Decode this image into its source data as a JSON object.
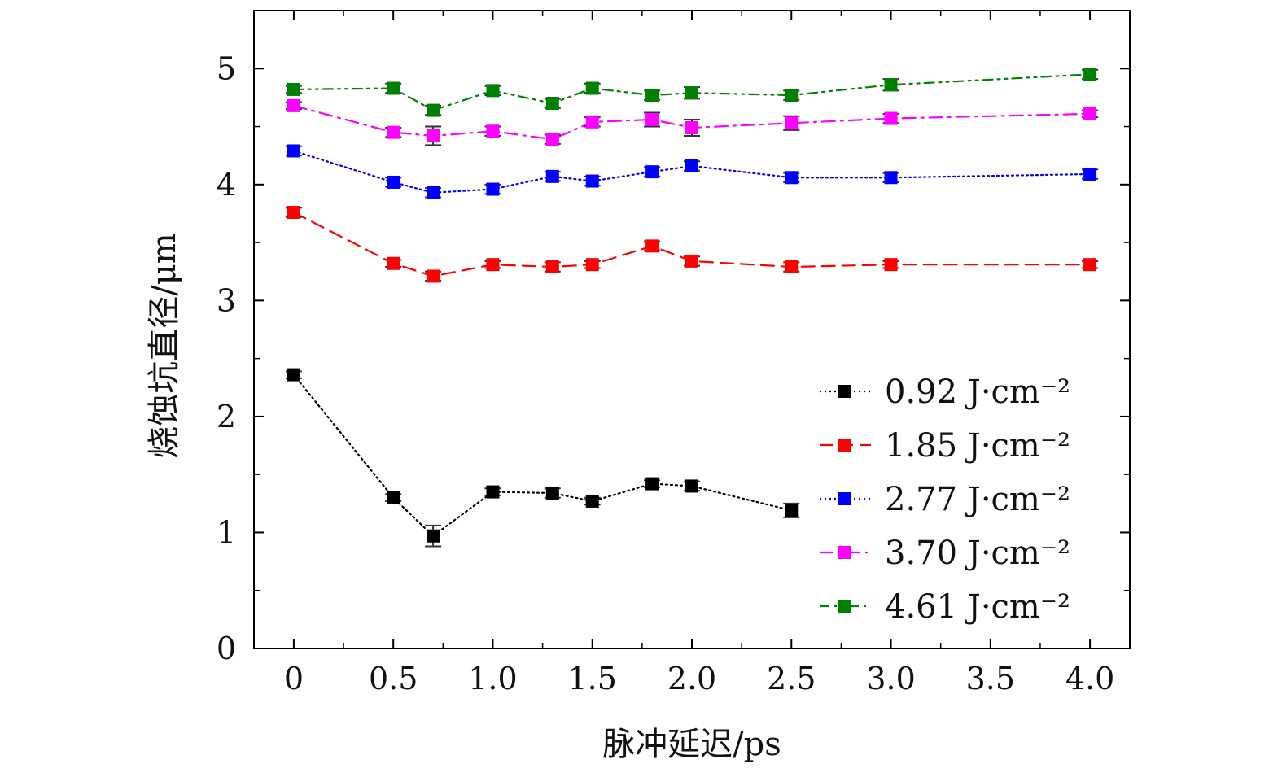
{
  "chart_data": {
    "type": "line",
    "title": "",
    "xlabel": "脉冲延迟/ps",
    "ylabel": "烧蚀坑直径/μm",
    "xlim": [
      -0.2,
      4.2
    ],
    "ylim": [
      0,
      5.5
    ],
    "x_ticks": [
      0,
      0.5,
      1.0,
      1.5,
      2.0,
      2.5,
      3.0,
      3.5,
      4.0
    ],
    "x_tick_labels": [
      "0",
      "0.5",
      "1.0",
      "1.5",
      "2.0",
      "2.5",
      "3.0",
      "3.5",
      "4.0"
    ],
    "y_ticks": [
      0,
      1,
      2,
      3,
      4,
      5
    ],
    "y_tick_labels": [
      "0",
      "1",
      "2",
      "3",
      "4",
      "5"
    ],
    "legend_position": "bottom-right",
    "series": [
      {
        "name": "0.92 J·cm⁻²",
        "color": "#000000",
        "dash": "dotted",
        "x": [
          0,
          0.5,
          0.7,
          1.0,
          1.3,
          1.5,
          1.8,
          2.0,
          2.5
        ],
        "y": [
          2.36,
          1.3,
          0.97,
          1.35,
          1.34,
          1.27,
          1.42,
          1.4,
          1.19
        ],
        "err": [
          0.03,
          0.03,
          0.09,
          0.03,
          0.04,
          0.03,
          0.03,
          0.04,
          0.06
        ]
      },
      {
        "name": "1.85 J·cm⁻²",
        "color": "#ff0000",
        "dash": "dashed",
        "x": [
          0,
          0.5,
          0.7,
          1.0,
          1.3,
          1.5,
          1.8,
          2.0,
          2.5,
          3.0,
          4.0
        ],
        "y": [
          3.76,
          3.32,
          3.21,
          3.31,
          3.29,
          3.31,
          3.47,
          3.34,
          3.29,
          3.31,
          3.31
        ],
        "err": [
          0.04,
          0.03,
          0.04,
          0.03,
          0.04,
          0.03,
          0.04,
          0.04,
          0.04,
          0.03,
          0.03
        ]
      },
      {
        "name": "2.77 J·cm⁻²",
        "color": "#0000ff",
        "dash": "dotted",
        "x": [
          0,
          0.5,
          0.7,
          1.0,
          1.3,
          1.5,
          1.8,
          2.0,
          2.5,
          3.0,
          4.0
        ],
        "y": [
          4.29,
          4.02,
          3.93,
          3.96,
          4.07,
          4.03,
          4.11,
          4.16,
          4.06,
          4.06,
          4.09
        ],
        "err": [
          0.04,
          0.04,
          0.04,
          0.04,
          0.04,
          0.04,
          0.04,
          0.04,
          0.04,
          0.04,
          0.04
        ]
      },
      {
        "name": "3.70 J·cm⁻²",
        "color": "#ff00ff",
        "dash": "dashdot",
        "x": [
          0,
          0.5,
          0.7,
          1.0,
          1.3,
          1.5,
          1.8,
          2.0,
          2.5,
          3.0,
          4.0
        ],
        "y": [
          4.68,
          4.45,
          4.42,
          4.46,
          4.39,
          4.54,
          4.56,
          4.49,
          4.53,
          4.57,
          4.61
        ],
        "err": [
          0.03,
          0.04,
          0.08,
          0.04,
          0.04,
          0.04,
          0.06,
          0.07,
          0.06,
          0.04,
          0.03
        ]
      },
      {
        "name": "4.61 J·cm⁻²",
        "color": "#008000",
        "dash": "dashdotdot",
        "x": [
          0,
          0.5,
          0.7,
          1.0,
          1.3,
          1.5,
          1.8,
          2.0,
          2.5,
          3.0,
          4.0
        ],
        "y": [
          4.82,
          4.83,
          4.64,
          4.81,
          4.7,
          4.83,
          4.77,
          4.79,
          4.77,
          4.86,
          4.95
        ],
        "err": [
          0.03,
          0.04,
          0.04,
          0.04,
          0.04,
          0.04,
          0.04,
          0.05,
          0.04,
          0.05,
          0.04
        ]
      }
    ]
  }
}
